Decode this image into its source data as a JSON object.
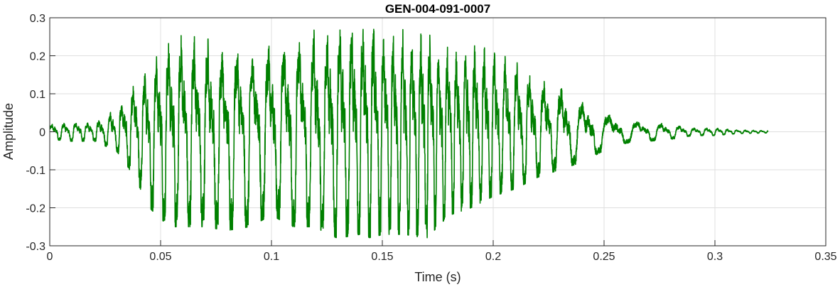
{
  "chart_data": {
    "type": "line",
    "title": "GEN-004-091-0007",
    "xlabel": "Time (s)",
    "ylabel": "Amplitude",
    "xlim": [
      0,
      0.35
    ],
    "ylim": [
      -0.3,
      0.3
    ],
    "xticks": [
      0,
      0.05,
      0.1,
      0.15,
      0.2,
      0.25,
      0.3,
      0.35
    ],
    "xtick_labels": [
      "0",
      "0.05",
      "0.1",
      "0.15",
      "0.2",
      "0.25",
      "0.3",
      "0.35"
    ],
    "yticks": [
      -0.3,
      -0.2,
      -0.1,
      0,
      0.1,
      0.2,
      0.3
    ],
    "ytick_labels": [
      "-0.3",
      "-0.2",
      "-0.1",
      "0",
      "0.1",
      "0.2",
      "0.3"
    ],
    "grid": true,
    "line_color": "#008000",
    "series": [
      {
        "duration": 0.324,
        "envelope": {
          "t": [
            0,
            0.01,
            0.02,
            0.03,
            0.035,
            0.04,
            0.045,
            0.05,
            0.055,
            0.06,
            0.07,
            0.08,
            0.09,
            0.1,
            0.11,
            0.12,
            0.125,
            0.13,
            0.14,
            0.145,
            0.15,
            0.16,
            0.17,
            0.18,
            0.19,
            0.2,
            0.21,
            0.22,
            0.23,
            0.24,
            0.25,
            0.26,
            0.27,
            0.28,
            0.29,
            0.3,
            0.31,
            0.324
          ],
          "pos": [
            0.02,
            0.025,
            0.025,
            0.06,
            0.1,
            0.14,
            0.17,
            0.23,
            0.25,
            0.26,
            0.25,
            0.22,
            0.22,
            0.23,
            0.24,
            0.27,
            0.28,
            0.28,
            0.29,
            0.3,
            0.26,
            0.27,
            0.26,
            0.22,
            0.24,
            0.22,
            0.19,
            0.14,
            0.12,
            0.08,
            0.05,
            0.03,
            0.025,
            0.02,
            0.01,
            0.01,
            0.005,
            0.003
          ],
          "neg": [
            0.02,
            0.025,
            0.025,
            0.05,
            0.09,
            0.14,
            0.2,
            0.23,
            0.25,
            0.25,
            0.25,
            0.26,
            0.25,
            0.22,
            0.25,
            0.25,
            0.27,
            0.28,
            0.27,
            0.28,
            0.27,
            0.27,
            0.28,
            0.22,
            0.2,
            0.17,
            0.15,
            0.12,
            0.1,
            0.08,
            0.05,
            0.03,
            0.025,
            0.02,
            0.01,
            0.01,
            0.005,
            0.003
          ]
        },
        "fundamental_hz": 180
      }
    ]
  }
}
